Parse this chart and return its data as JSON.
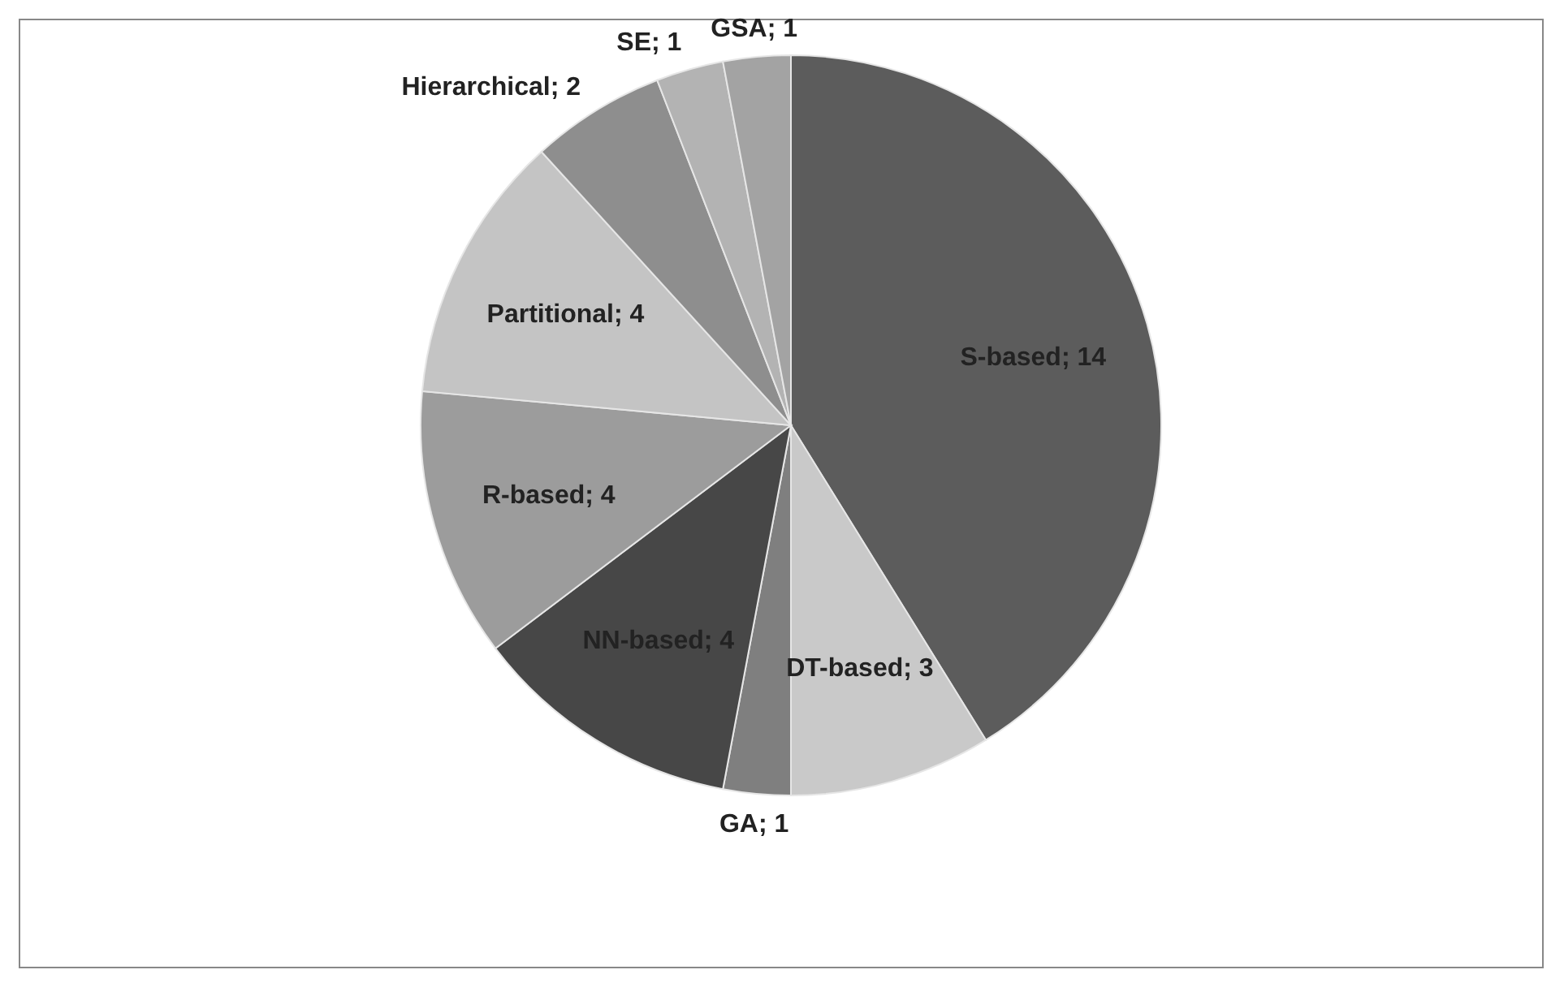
{
  "chart_data": {
    "type": "pie",
    "categories": [
      "S-based; 14",
      "DT-based; 3",
      "GA; 1",
      "NN-based; 4",
      "R-based; 4",
      "Partitional; 4",
      "Hierarchical; 2",
      "SE; 1",
      "GSA; 1"
    ],
    "values": [
      14,
      3,
      1,
      4,
      4,
      4,
      2,
      1,
      1
    ],
    "colors": [
      "#5c5c5c",
      "#c9c9c9",
      "#7f7f7f",
      "#474747",
      "#9c9c9c",
      "#c4c4c4",
      "#8e8e8e",
      "#b3b3b3",
      "#a3a3a3"
    ],
    "legend": false
  }
}
